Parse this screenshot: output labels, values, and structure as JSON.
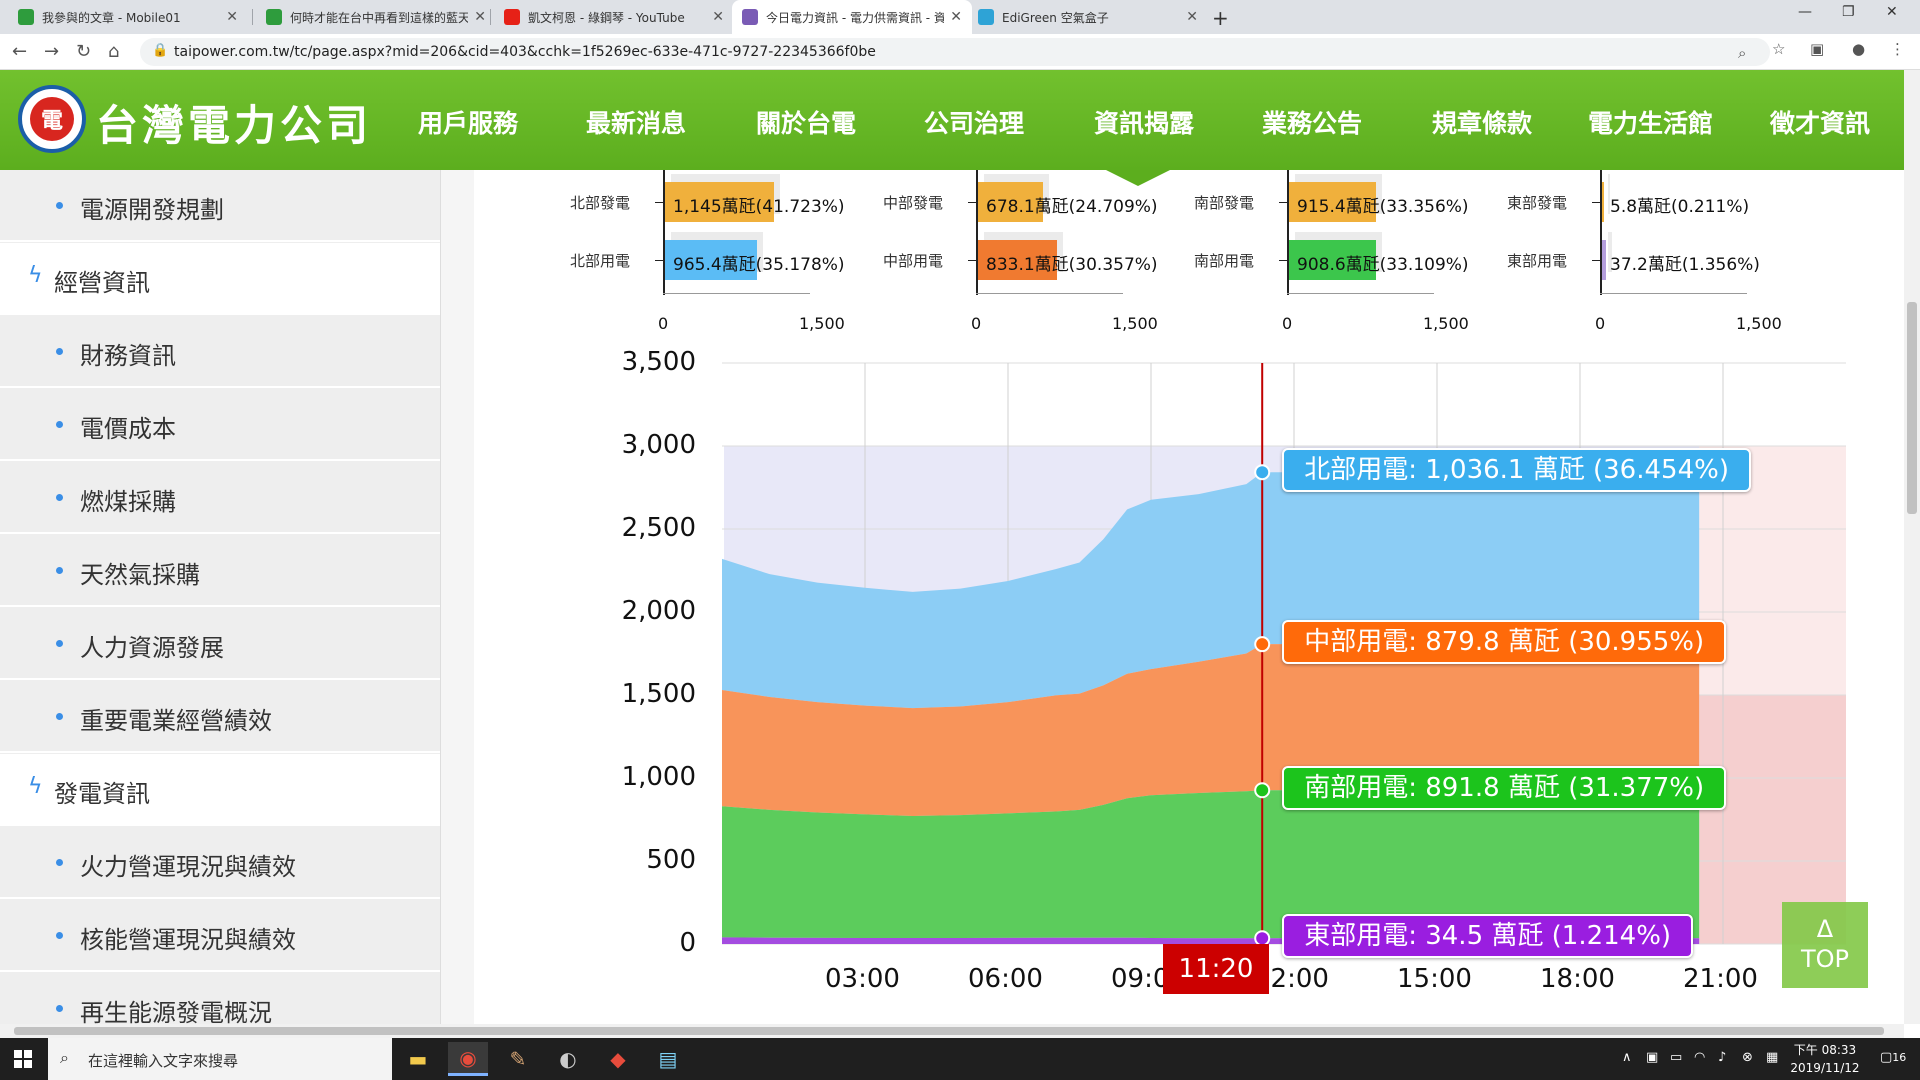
{
  "browser": {
    "tabs": [
      {
        "title": "我參與的文章 - Mobile01",
        "icon_color": "#2e9c3d",
        "active": false
      },
      {
        "title": "何時才能在台中再看到這樣的藍天",
        "icon_color": "#2e9c3d",
        "active": false
      },
      {
        "title": "凱文柯恩 - 綠鋼琴 - YouTube",
        "icon_color": "#e62117",
        "active": false
      },
      {
        "title": "今日電力資訊 - 電力供需資訊 - 資",
        "icon_color": "#7a5bb5",
        "active": true
      },
      {
        "title": "EdiGreen 空氣盒子",
        "icon_color": "#2ea3d6",
        "active": false
      }
    ],
    "url": "taipower.com.tw/tc/page.aspx?mid=206&cid=403&cchk=1f5269ec-633e-471c-9727-22345366f0be"
  },
  "header": {
    "logo_text": "台灣電力公司",
    "nav": [
      "用戶服務",
      "最新消息",
      "關於台電",
      "公司治理",
      "資訊揭露",
      "業務公告",
      "規章條款",
      "電力生活館",
      "徵才資訊"
    ]
  },
  "sidebar": {
    "items": [
      {
        "label": "電源開發規劃",
        "type": "sub"
      },
      {
        "label": "經營資訊",
        "type": "head"
      },
      {
        "label": "財務資訊",
        "type": "sub"
      },
      {
        "label": "電價成本",
        "type": "sub"
      },
      {
        "label": "燃煤採購",
        "type": "sub"
      },
      {
        "label": "天然氣採購",
        "type": "sub"
      },
      {
        "label": "人力資源發展",
        "type": "sub"
      },
      {
        "label": "重要電業經營績效",
        "type": "sub"
      },
      {
        "label": "發電資訊",
        "type": "head"
      },
      {
        "label": "火力營運現況與績效",
        "type": "sub"
      },
      {
        "label": "核能營運現況與績效",
        "type": "sub"
      },
      {
        "label": "再生能源發電概況",
        "type": "sub"
      }
    ]
  },
  "chart_data": [
    {
      "type": "bar",
      "region": "north",
      "categories": [
        "北部發電",
        "北部用電"
      ],
      "values": [
        1145,
        965.4
      ],
      "labels": [
        "1,145萬瓩(41.723%)",
        "965.4萬瓩(35.178%)"
      ],
      "colors": [
        "#f0b03c",
        "#5bbcf5"
      ],
      "xlim": [
        0,
        1500
      ],
      "ticks": [
        "0",
        "1,500"
      ]
    },
    {
      "type": "bar",
      "region": "central",
      "categories": [
        "中部發電",
        "中部用電"
      ],
      "values": [
        678.1,
        833.1
      ],
      "labels": [
        "678.1萬瓩(24.709%)",
        "833.1萬瓩(30.357%)"
      ],
      "colors": [
        "#f0b03c",
        "#f07a30"
      ],
      "xlim": [
        0,
        1500
      ],
      "ticks": [
        "0",
        "1,500"
      ]
    },
    {
      "type": "bar",
      "region": "south",
      "categories": [
        "南部發電",
        "南部用電"
      ],
      "values": [
        915.4,
        908.6
      ],
      "labels": [
        "915.4萬瓩(33.356%)",
        "908.6萬瓩(33.109%)"
      ],
      "colors": [
        "#f0b03c",
        "#3cc64c"
      ],
      "xlim": [
        0,
        1500
      ],
      "ticks": [
        "0",
        "1,500"
      ]
    },
    {
      "type": "bar",
      "region": "east",
      "categories": [
        "東部發電",
        "東部用電"
      ],
      "values": [
        5.8,
        37.2
      ],
      "labels": [
        "5.8萬瓩(0.211%)",
        "37.2萬瓩(1.356%)"
      ],
      "colors": [
        "#f0b03c",
        "#b39ddb"
      ],
      "xlim": [
        0,
        1500
      ],
      "ticks": [
        "0",
        "1,500"
      ]
    },
    {
      "type": "area",
      "stacked": true,
      "ylim": [
        0,
        3500
      ],
      "yticks": [
        "0",
        "500",
        "1,000",
        "1,500",
        "2,000",
        "2,500",
        "3,000",
        "3,500"
      ],
      "xlim": [
        0,
        24
      ],
      "xticks": [
        "03:00",
        "06:00",
        "09:00",
        "12:00",
        "15:00",
        "18:00",
        "21:00"
      ],
      "current_time_label": "11:20",
      "current_time_hours": 11.333,
      "forecast_end_hours": 20.5,
      "hours": [
        0,
        1,
        2,
        3,
        4,
        5,
        6,
        7,
        7.5,
        8,
        8.5,
        9,
        10,
        11,
        11.333
      ],
      "series": [
        {
          "name": "東部用電",
          "color": "#a44ce0",
          "values": [
            40,
            38,
            37,
            36,
            36,
            36,
            37,
            38,
            38,
            38,
            38,
            36,
            35,
            35,
            34.5
          ]
        },
        {
          "name": "南部用電",
          "color": "#5ccc5c",
          "values": [
            790,
            770,
            755,
            745,
            735,
            740,
            750,
            760,
            770,
            800,
            840,
            860,
            875,
            885,
            891.8
          ]
        },
        {
          "name": "中部用電",
          "color": "#f8945a",
          "values": [
            700,
            680,
            665,
            655,
            650,
            655,
            670,
            700,
            700,
            720,
            750,
            760,
            790,
            830,
            879.8
          ]
        },
        {
          "name": "北部用電",
          "color": "#8ccdf5",
          "values": [
            790,
            740,
            720,
            710,
            700,
            710,
            730,
            760,
            790,
            880,
            990,
            1020,
            1010,
            1020,
            1036.1
          ]
        }
      ],
      "tooltips": [
        {
          "text": "北部用電: 1,036.1 萬瓩 (36.454%)",
          "color": "#3aaeee"
        },
        {
          "text": "中部用電: 879.8 萬瓩 (30.955%)",
          "color": "#ff6a0a"
        },
        {
          "text": "南部用電: 891.8 萬瓩 (31.377%)",
          "color": "#1cc41c"
        },
        {
          "text": "東部用電: 34.5 萬瓩 (1.214%)",
          "color": "#9a1ee0"
        }
      ]
    }
  ],
  "top_button": {
    "arrow": "Δ",
    "label": "TOP"
  },
  "taskbar": {
    "search_placeholder": "在這裡輸入文字來搜尋",
    "time": "下午 08:33",
    "date": "2019/11/12",
    "notification_count": "16"
  }
}
